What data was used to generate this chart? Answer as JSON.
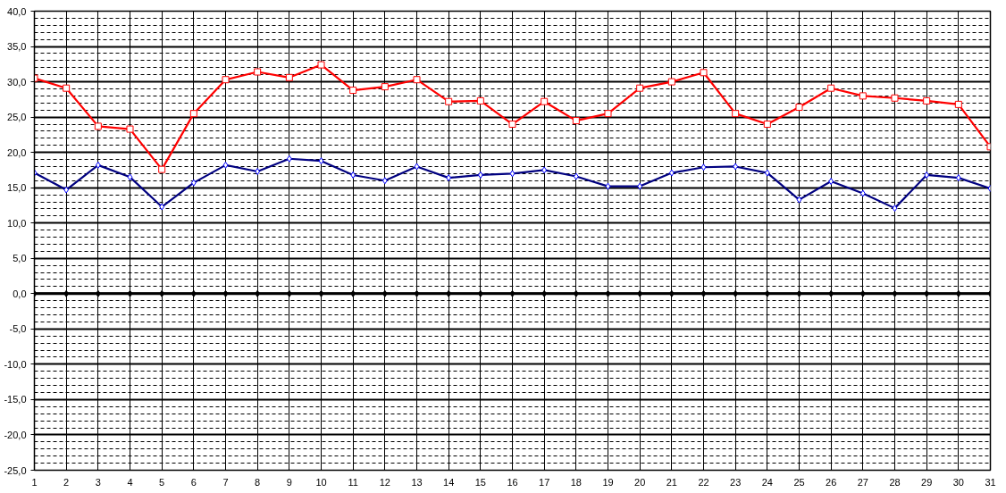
{
  "chart_data": {
    "type": "line",
    "x": [
      1,
      2,
      3,
      4,
      5,
      6,
      7,
      8,
      9,
      10,
      11,
      12,
      13,
      14,
      15,
      16,
      17,
      18,
      19,
      20,
      21,
      22,
      23,
      24,
      25,
      26,
      27,
      28,
      29,
      30,
      31
    ],
    "series": [
      {
        "color": "#ff0000",
        "marker": "square",
        "values": [
          30.5,
          29.1,
          23.7,
          23.3,
          17.6,
          25.5,
          30.3,
          31.4,
          30.6,
          32.4,
          28.8,
          29.3,
          30.3,
          27.2,
          27.3,
          24.0,
          27.2,
          24.5,
          25.5,
          29.1,
          30.0,
          31.3,
          25.5,
          24.0,
          26.4,
          29.1,
          28.0,
          27.7,
          27.3,
          26.8,
          20.8
        ]
      },
      {
        "color": "#000080",
        "marker": "diamond",
        "values": [
          17.1,
          14.7,
          18.2,
          16.5,
          12.3,
          15.7,
          18.2,
          17.3,
          19.1,
          18.8,
          16.8,
          16.0,
          18.0,
          16.4,
          16.8,
          17.0,
          17.5,
          16.6,
          15.2,
          15.2,
          17.1,
          17.9,
          18.0,
          17.1,
          13.3,
          15.9,
          14.2,
          12.1,
          16.8,
          16.4,
          14.9
        ]
      },
      {
        "color": "#000000",
        "marker": "diamond",
        "values": [
          0,
          0,
          0,
          0,
          0,
          0,
          0,
          0,
          0,
          0,
          0,
          0,
          0,
          0,
          0,
          0,
          0,
          0,
          0,
          0,
          0,
          0,
          0,
          0,
          0,
          0,
          0,
          0,
          0,
          0,
          0
        ]
      }
    ],
    "xlim": [
      1,
      31
    ],
    "xticks": [
      1,
      2,
      3,
      4,
      5,
      6,
      7,
      8,
      9,
      10,
      11,
      12,
      13,
      14,
      15,
      16,
      17,
      18,
      19,
      20,
      21,
      22,
      23,
      24,
      25,
      26,
      27,
      28,
      29,
      30,
      31
    ],
    "ylim": [
      -25,
      40
    ],
    "yticks": [
      {
        "value": -25,
        "label": "-25,0"
      },
      {
        "value": -20,
        "label": "-20,0"
      },
      {
        "value": -15,
        "label": "-15,0"
      },
      {
        "value": -10,
        "label": "-10,0"
      },
      {
        "value": -5,
        "label": "-5,0"
      },
      {
        "value": 0,
        "label": "0,0"
      },
      {
        "value": 5,
        "label": "5,0"
      },
      {
        "value": 10,
        "label": "10,0"
      },
      {
        "value": 15,
        "label": "15,0"
      },
      {
        "value": 20,
        "label": "20,0"
      },
      {
        "value": 25,
        "label": "25,0"
      },
      {
        "value": 30,
        "label": "30,0"
      },
      {
        "value": 35,
        "label": "35,0"
      },
      {
        "value": 40,
        "label": "40,0"
      }
    ],
    "grid": true,
    "line_style": "solid"
  }
}
